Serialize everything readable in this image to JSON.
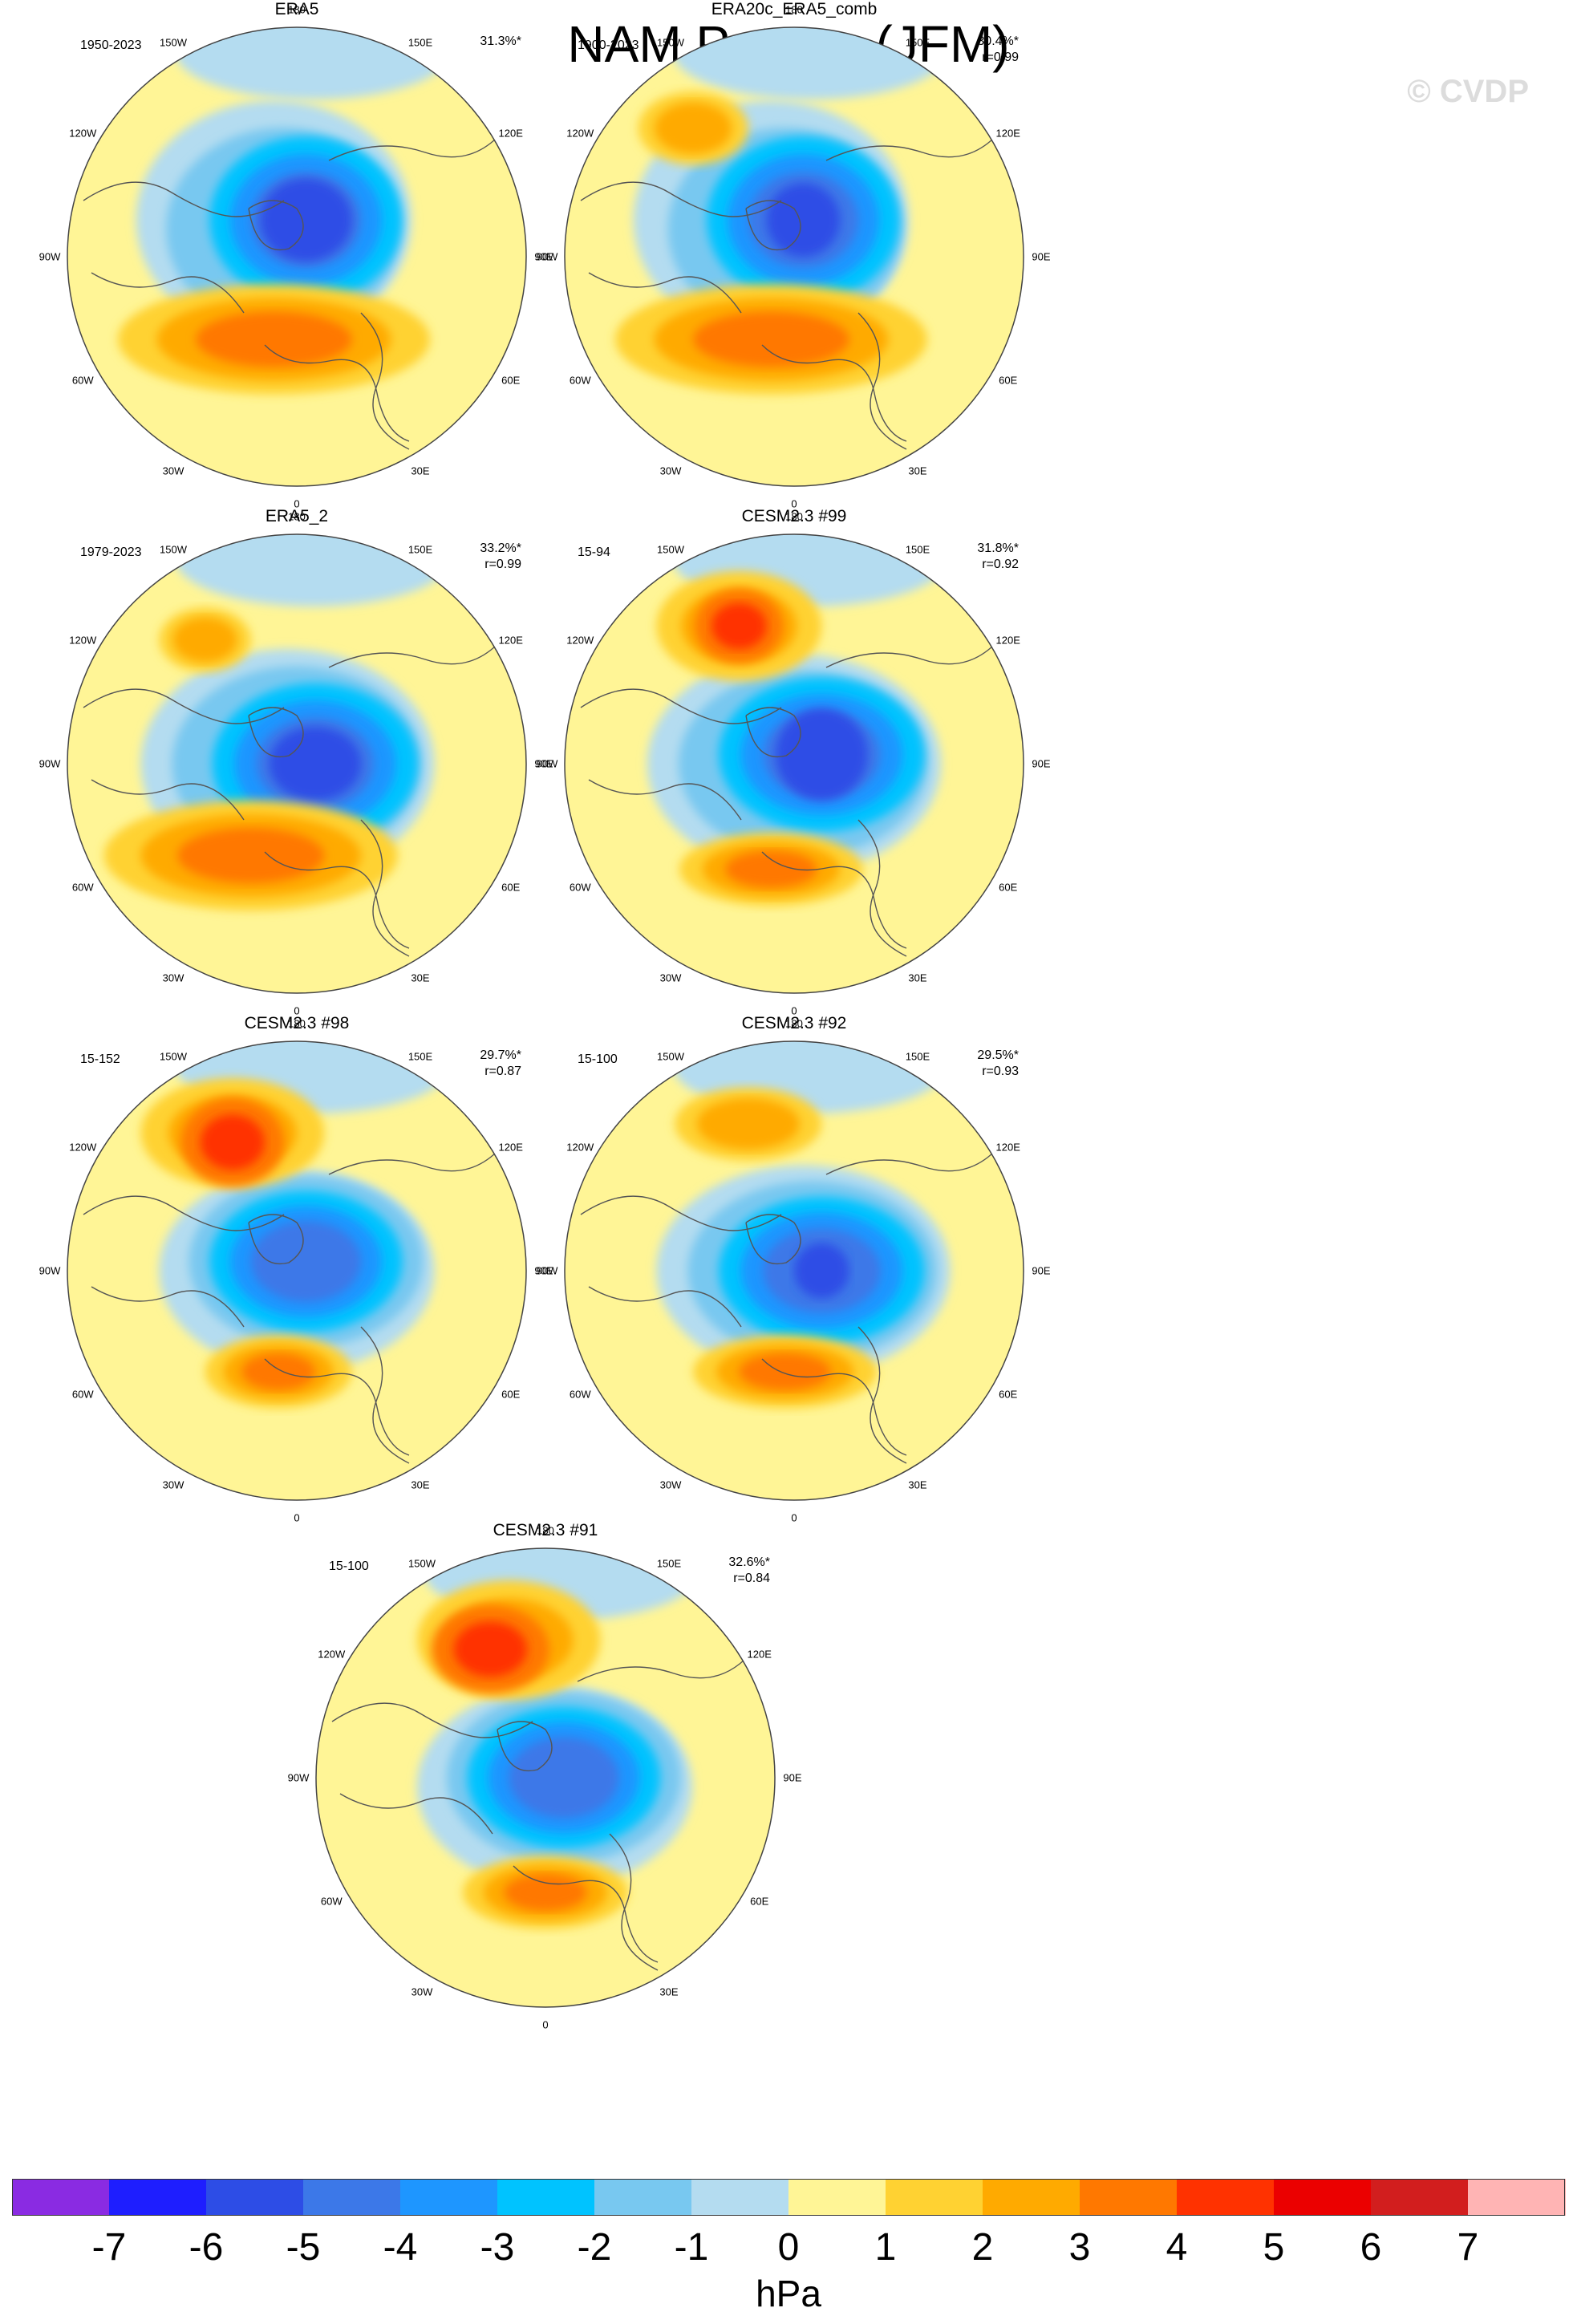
{
  "title": "NAM Pattern (JFM)",
  "watermark": "© CVDP",
  "longitude_labels": [
    "180",
    "150E",
    "120E",
    "90E",
    "60E",
    "30E",
    "0",
    "30W",
    "60W",
    "90W",
    "120W",
    "150W"
  ],
  "panels": [
    {
      "title": "ERA5",
      "period": "1950-2023",
      "variance": "31.3%*",
      "corr": ""
    },
    {
      "title": "ERA20c_ERA5_comb",
      "period": "1900-2023",
      "variance": "30.4%*",
      "corr": "r=0.99"
    },
    {
      "title": "ERA5_2",
      "period": "1979-2023",
      "variance": "33.2%*",
      "corr": "r=0.99"
    },
    {
      "title": "CESM2.3 #99",
      "period": "15-94",
      "variance": "31.8%*",
      "corr": "r=0.92"
    },
    {
      "title": "CESM2.3 #98",
      "period": "15-152",
      "variance": "29.7%*",
      "corr": "r=0.87"
    },
    {
      "title": "CESM2.3 #92",
      "period": "15-100",
      "variance": "29.5%*",
      "corr": "r=0.93"
    },
    {
      "title": "CESM2.3 #91",
      "period": "15-100",
      "variance": "32.6%*",
      "corr": "r=0.84"
    }
  ],
  "colorbar": {
    "units": "hPa",
    "ticks": [
      "-7",
      "-6",
      "-5",
      "-4",
      "-3",
      "-2",
      "-1",
      "0",
      "1",
      "2",
      "3",
      "4",
      "5",
      "6",
      "7"
    ],
    "colors": [
      "#8a2be2",
      "#1e1eff",
      "#2d4de6",
      "#3c78e8",
      "#1e96ff",
      "#00c3ff",
      "#78c8f0",
      "#b4dcf0",
      "#fff596",
      "#ffd232",
      "#ffaa00",
      "#ff7800",
      "#ff3200",
      "#eb0000",
      "#d21e1e",
      "#ffb4b4"
    ]
  },
  "colors": {
    "ocean_background": "#fff596",
    "negative_light": "#b4dcf0",
    "positive_light": "#ffd232"
  }
}
